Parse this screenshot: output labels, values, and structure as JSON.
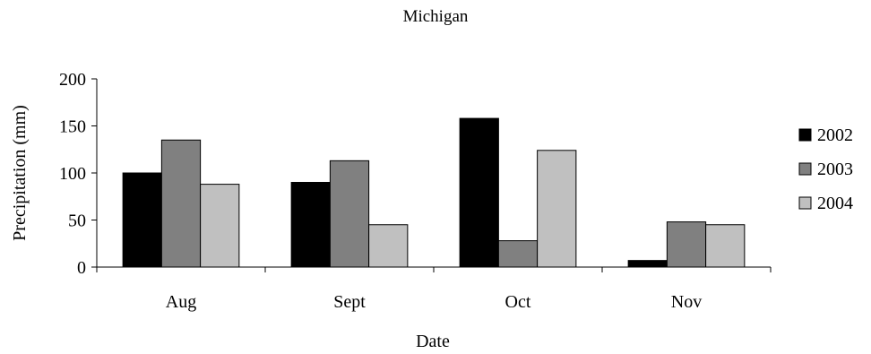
{
  "chart_data": {
    "type": "bar",
    "title": "Michigan",
    "xlabel": "Date",
    "ylabel": "Precipitation (mm)",
    "categories": [
      "Aug",
      "Sept",
      "Oct",
      "Nov"
    ],
    "ylim": [
      0,
      200
    ],
    "yticks": [
      "0",
      "50",
      "100",
      "150",
      "200"
    ],
    "grid": false,
    "legend_position": "right",
    "series": [
      {
        "name": "2002",
        "values": [
          100,
          90,
          158,
          7
        ],
        "color": "#000000"
      },
      {
        "name": "2003",
        "values": [
          135,
          113,
          28,
          48
        ],
        "color": "#808080"
      },
      {
        "name": "2004",
        "values": [
          88,
          45,
          124,
          45
        ],
        "color": "#c0c0c0"
      }
    ]
  }
}
